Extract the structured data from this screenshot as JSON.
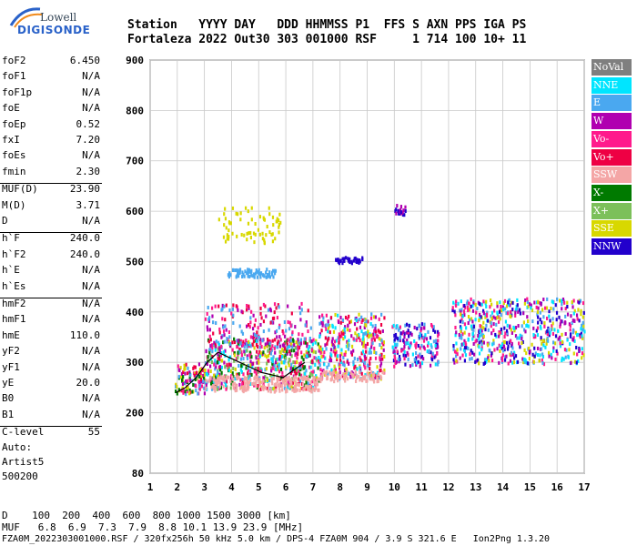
{
  "logo": {
    "line1": "Lowell",
    "line2": "DIGISONDE"
  },
  "header": {
    "line1": "Station   YYYY DAY   DDD HHMMSS P1  FFS S AXN PPS IGA PS",
    "line2": "Fortaleza 2022 Out30 303 001000 RSF     1 714 100 10+ 11"
  },
  "params": [
    {
      "k": "foF2",
      "v": "6.450"
    },
    {
      "k": "foF1",
      "v": "N/A"
    },
    {
      "k": "foF1p",
      "v": "N/A"
    },
    {
      "k": "foE",
      "v": "N/A"
    },
    {
      "k": "foEp",
      "v": "0.52"
    },
    {
      "k": "fxI",
      "v": "7.20"
    },
    {
      "k": "foEs",
      "v": "N/A"
    },
    {
      "k": "fmin",
      "v": "2.30"
    },
    {
      "k": "MUF(D)",
      "v": "23.90"
    },
    {
      "k": "M(D)",
      "v": "3.71"
    },
    {
      "k": "D",
      "v": "N/A"
    },
    {
      "k": "h`F",
      "v": "240.0"
    },
    {
      "k": "h`F2",
      "v": "240.0"
    },
    {
      "k": "h`E",
      "v": "N/A"
    },
    {
      "k": "h`Es",
      "v": "N/A"
    },
    {
      "k": "hmF2",
      "v": "N/A"
    },
    {
      "k": "hmF1",
      "v": "N/A"
    },
    {
      "k": "hmE",
      "v": "110.0"
    },
    {
      "k": "yF2",
      "v": "N/A"
    },
    {
      "k": "yF1",
      "v": "N/A"
    },
    {
      "k": "yE",
      "v": "20.0"
    },
    {
      "k": "B0",
      "v": "N/A"
    },
    {
      "k": "B1",
      "v": "N/A"
    },
    {
      "k": "C-level",
      "v": "55"
    }
  ],
  "info": {
    "auto": "Auto:",
    "artist": "Artist5",
    "version": "500200"
  },
  "legend": [
    {
      "name": "NoVal",
      "color": "#7f7f7f"
    },
    {
      "name": "NNE",
      "color": "#00e5ff"
    },
    {
      "name": "E",
      "color": "#4aa8f0"
    },
    {
      "name": "W",
      "color": "#b000b0"
    },
    {
      "name": "Vo-",
      "color": "#ff1a8c"
    },
    {
      "name": "Vo+",
      "color": "#ee0044"
    },
    {
      "name": "SSW",
      "color": "#f4a6a6"
    },
    {
      "name": "X-",
      "color": "#007a00"
    },
    {
      "name": "X+",
      "color": "#7cc05a"
    },
    {
      "name": "SSE",
      "color": "#d8d800"
    },
    {
      "name": "NNW",
      "color": "#2200cc"
    }
  ],
  "footer": {
    "d_row": "D    100  200  400  600  800 1000 1500 3000 [km]",
    "muf_row": "MUF   6.8  6.9  7.3  7.9  8.8 10.1 13.9 23.9 [MHz]",
    "file_row": "FZA0M_2022303001000.RSF / 320fx256h 50 kHz 5.0 km / DPS-4 FZA0M 904 / 3.9 S 321.6 E   Ion2Png 1.3.20"
  },
  "chart_data": {
    "type": "scatter",
    "xlim": [
      1,
      17
    ],
    "ylim": [
      80,
      900
    ],
    "x_ticks": [
      "1",
      "2",
      "3",
      "4",
      "5",
      "6",
      "7",
      "8",
      "9",
      "10",
      "11",
      "12",
      "13",
      "14",
      "15",
      "16",
      "17"
    ],
    "y_ticks": [
      "80",
      "200",
      "300",
      "400",
      "500",
      "600",
      "700",
      "800",
      "900"
    ],
    "grid": true,
    "legend_position": "right",
    "trace_x": [
      1.95,
      2.3,
      2.7,
      3.1,
      3.5,
      3.9,
      4.3,
      4.7,
      5.1,
      5.5,
      5.9,
      6.3,
      6.7
    ],
    "trace_y": [
      240,
      250,
      270,
      300,
      320,
      310,
      300,
      290,
      280,
      275,
      270,
      285,
      300
    ],
    "clusters": [
      {
        "x": [
          1.9,
          3.0
        ],
        "y": [
          240,
          300
        ],
        "n": 120,
        "colors": [
          "#ff1a8c",
          "#ee0044",
          "#b000b0",
          "#4aa8f0",
          "#d8d800",
          "#007a00"
        ]
      },
      {
        "x": [
          3.0,
          7.2
        ],
        "y": [
          250,
          350
        ],
        "n": 600,
        "colors": [
          "#ff1a8c",
          "#4aa8f0",
          "#b000b0",
          "#00e5ff",
          "#d8d800",
          "#ee0044",
          "#007a00",
          "#7cc05a"
        ]
      },
      {
        "x": [
          3.0,
          7.2
        ],
        "y": [
          245,
          275
        ],
        "n": 200,
        "colors": [
          "#f4a6a6"
        ]
      },
      {
        "x": [
          3.0,
          7.0
        ],
        "y": [
          330,
          420
        ],
        "n": 180,
        "colors": [
          "#ff1a8c",
          "#b000b0",
          "#ee0044",
          "#4aa8f0"
        ]
      },
      {
        "x": [
          3.5,
          5.8
        ],
        "y": [
          540,
          610
        ],
        "n": 70,
        "colors": [
          "#d8d800"
        ]
      },
      {
        "x": [
          3.8,
          5.6
        ],
        "y": [
          472,
          488
        ],
        "n": 70,
        "colors": [
          "#4aa8f0"
        ]
      },
      {
        "x": [
          7.2,
          9.6
        ],
        "y": [
          270,
          400
        ],
        "n": 350,
        "colors": [
          "#ff1a8c",
          "#4aa8f0",
          "#00e5ff",
          "#b000b0",
          "#ee0044",
          "#d8d800"
        ]
      },
      {
        "x": [
          7.2,
          9.6
        ],
        "y": [
          265,
          285
        ],
        "n": 80,
        "colors": [
          "#f4a6a6"
        ]
      },
      {
        "x": [
          7.8,
          8.8
        ],
        "y": [
          500,
          512
        ],
        "n": 35,
        "colors": [
          "#2200cc"
        ]
      },
      {
        "x": [
          9.9,
          11.6
        ],
        "y": [
          295,
          380
        ],
        "n": 180,
        "colors": [
          "#2200cc",
          "#4aa8f0",
          "#00e5ff",
          "#ff1a8c",
          "#b000b0"
        ]
      },
      {
        "x": [
          10.0,
          10.4
        ],
        "y": [
          595,
          615
        ],
        "n": 20,
        "colors": [
          "#2200cc",
          "#b000b0"
        ]
      },
      {
        "x": [
          12.1,
          17.0
        ],
        "y": [
          300,
          430
        ],
        "n": 600,
        "colors": [
          "#4aa8f0",
          "#00e5ff",
          "#2200cc",
          "#ff1a8c",
          "#b000b0",
          "#d8d800"
        ]
      }
    ]
  }
}
